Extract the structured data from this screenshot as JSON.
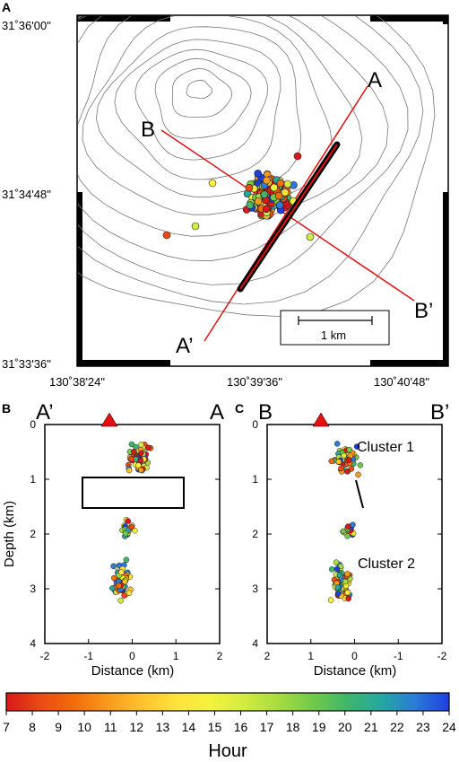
{
  "panels": {
    "a": {
      "letter": "A",
      "lat_ticks": [
        "31˚36'00\"",
        "31˚34'48\"",
        "31˚33'36\""
      ],
      "lon_ticks": [
        "130˚38'24\"",
        "130˚39'36\"",
        "130˚40'48\""
      ],
      "profile_labels": {
        "a": "A",
        "a_prime": "A’",
        "b": "B",
        "b_prime": "B’"
      },
      "scale_bar": "1 km"
    },
    "b": {
      "letter": "B",
      "end_left": "A’",
      "end_right": "A",
      "ylabel": "Depth (km)",
      "xlabel": "Distance (km)"
    },
    "c": {
      "letter": "C",
      "end_left": "B",
      "end_right": "B’",
      "xlabel": "Distance (km)",
      "cluster1": "Cluster 1",
      "cluster2": "Cluster 2"
    }
  },
  "colorbar": {
    "label": "Hour",
    "ticks": [
      "7",
      "8",
      "9",
      "10",
      "11",
      "12",
      "13",
      "14",
      "15",
      "16",
      "17",
      "18",
      "19",
      "20",
      "21",
      "22",
      "23",
      "24"
    ],
    "colors": [
      "#d7191c",
      "#ea4a13",
      "#f46d0a",
      "#f99b1c",
      "#fdc32b",
      "#ffe33a",
      "#f4f23d",
      "#d2ec3f",
      "#a6dc3f",
      "#72c94a",
      "#3fb66a",
      "#23a8a0",
      "#2c7bd8",
      "#1d3fe0"
    ]
  },
  "chart_data": [
    {
      "type": "scatter",
      "panel": "B",
      "x_label": "Distance (km)",
      "y_label": "Depth (km)",
      "xlim": [
        -2,
        2
      ],
      "ylim": [
        4,
        0
      ],
      "x_ticks": [
        "-2",
        "-1",
        "0",
        "1",
        "2"
      ],
      "y_ticks": [
        "0",
        "1",
        "2",
        "3",
        "4"
      ],
      "summary": "Hypocenters projected onto profile A'-A; shallow group at 0.4–0.9 km depth, second group 1.7–3.5 km"
    },
    {
      "type": "scatter",
      "panel": "C",
      "x_label": "Distance (km)",
      "y_label": "Depth (km)",
      "xlim": [
        2,
        -2
      ],
      "ylim": [
        4,
        0
      ],
      "x_ticks": [
        "2",
        "1",
        "0",
        "-1",
        "-2"
      ],
      "y_ticks": [
        "0",
        "1",
        "2",
        "3",
        "4"
      ],
      "summary": "Hypocenters projected onto profile B-B'; Cluster 1 at 0.4–0.9 km depth, Cluster 2 at 1.6–3.5 km"
    }
  ]
}
